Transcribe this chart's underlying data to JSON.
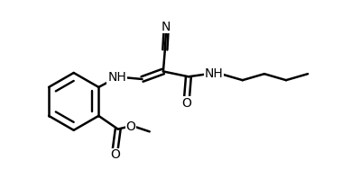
{
  "bg_color": "#ffffff",
  "line_color": "#000000",
  "line_width": 1.8,
  "font_size": 10,
  "figsize": [
    3.89,
    2.18
  ],
  "dpi": 100,
  "xlim": [
    0,
    10
  ],
  "ylim": [
    0,
    5.6
  ]
}
